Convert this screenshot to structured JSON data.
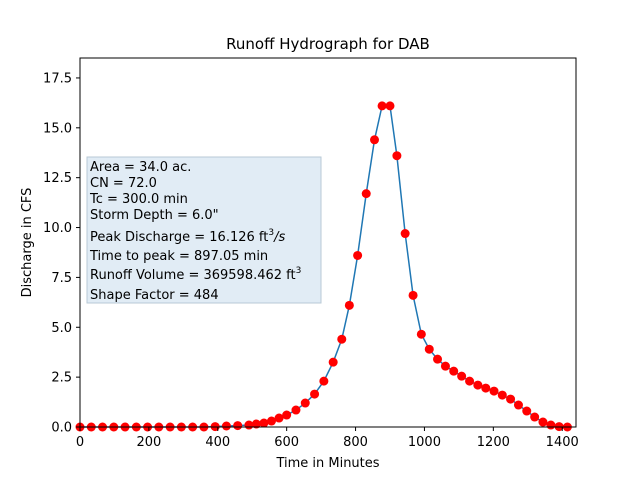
{
  "chart_data": {
    "type": "line",
    "title": "Runoff Hydrograph for DAB",
    "xlabel": "Time in Minutes",
    "ylabel": "Discharge in CFS",
    "xlim": [
      0,
      1440
    ],
    "ylim": [
      0,
      18.5
    ],
    "xticks": [
      0,
      200,
      400,
      600,
      800,
      1000,
      1200,
      1400
    ],
    "yticks": [
      0.0,
      2.5,
      5.0,
      7.5,
      10.0,
      12.5,
      15.0,
      17.5
    ],
    "ytick_labels": [
      "0.0",
      "2.5",
      "5.0",
      "7.5",
      "10.0",
      "12.5",
      "15.0",
      "17.5"
    ],
    "grid": false,
    "line_color": "#1f77b4",
    "marker_color": "#ff0000",
    "series": [
      {
        "x": [
          0,
          32.7,
          65.4,
          98.1,
          130.8,
          163.5,
          196.2,
          228.9,
          261.6,
          294.3,
          327,
          359.7,
          392.4,
          425.1,
          457.8,
          490.5,
          512,
          534,
          556,
          578,
          600,
          627,
          654,
          681,
          708,
          735,
          760,
          782,
          806,
          831,
          855,
          877,
          900,
          920,
          944,
          967,
          991,
          1014,
          1038,
          1061,
          1085,
          1108,
          1131,
          1155,
          1178,
          1202,
          1226,
          1250,
          1273,
          1297,
          1320,
          1344,
          1367,
          1391,
          1415
        ],
        "y": [
          0.0,
          0.0,
          0.0,
          0.0,
          0.0,
          0.0,
          0.0,
          0.0,
          0.0,
          0.0,
          0.0,
          0.0,
          0.02,
          0.05,
          0.07,
          0.1,
          0.15,
          0.2,
          0.3,
          0.45,
          0.6,
          0.85,
          1.2,
          1.65,
          2.3,
          3.25,
          4.4,
          6.1,
          8.6,
          11.7,
          14.4,
          16.1,
          16.1,
          13.6,
          9.7,
          6.6,
          4.65,
          3.9,
          3.4,
          3.05,
          2.8,
          2.55,
          2.3,
          2.1,
          1.95,
          1.8,
          1.6,
          1.4,
          1.1,
          0.8,
          0.5,
          0.25,
          0.1,
          0.02,
          0.0
        ]
      }
    ],
    "annotation": {
      "placement": "center-left",
      "lines": [
        "Area = 34.0 ac.",
        "CN = 72.0",
        "Tc = 300.0 min",
        "Storm Depth = 6.0\""
      ],
      "peak_label": "Peak Discharge = 16.126 ft",
      "peak_sup": "3",
      "peak_unit": "/s",
      "time_to_peak": "Time to peak = 897.05 min",
      "volume_label": "Runoff Volume = 369598.462 ft",
      "volume_sup": "3",
      "shape_factor": "Shape Factor = 484",
      "box_color": "#dce9f3"
    }
  }
}
